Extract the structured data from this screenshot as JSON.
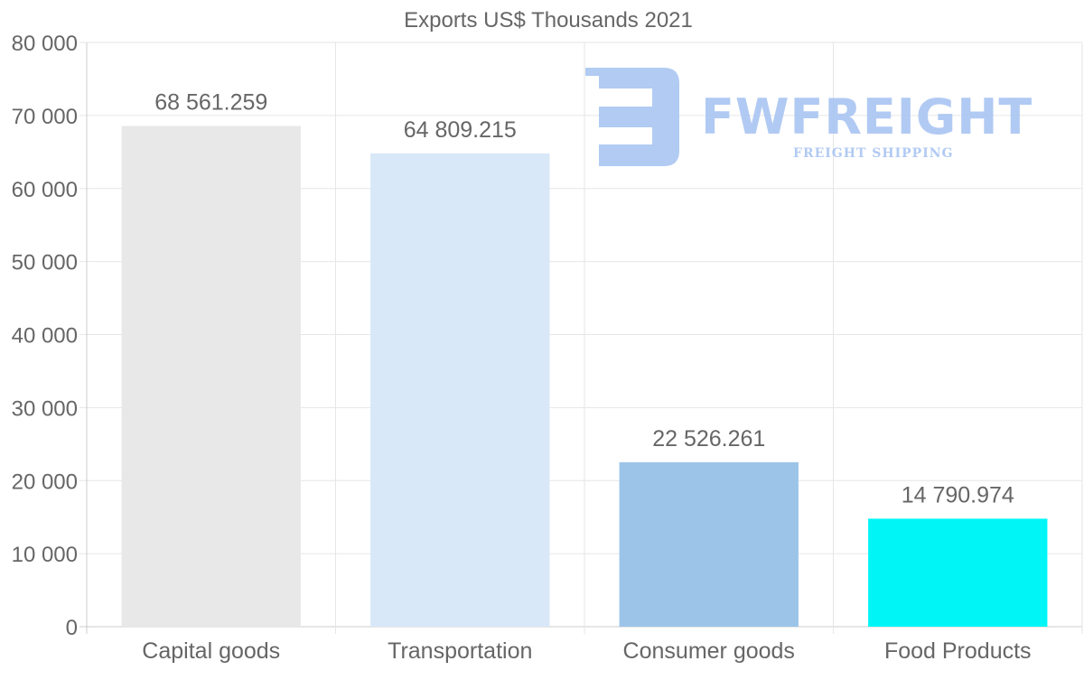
{
  "chart_data": {
    "type": "bar",
    "title": "Exports US$ Thousands 2021",
    "categories": [
      "Capital goods",
      "Transportation",
      "Consumer goods",
      "Food Products"
    ],
    "values": [
      68561.259,
      64809.215,
      22526.261,
      14790.974
    ],
    "data_labels": [
      "68 561.259",
      "64 809.215",
      "22 526.261",
      "14 790.974"
    ],
    "bar_colors": [
      "#e8e8e8",
      "#d8e8f8",
      "#9cc4e8",
      "#00f6f6"
    ],
    "ylim": [
      0,
      80000
    ],
    "y_ticks": [
      0,
      10000,
      20000,
      30000,
      40000,
      50000,
      60000,
      70000,
      80000
    ],
    "y_tick_labels": [
      "0",
      "10 000",
      "20 000",
      "30 000",
      "40 000",
      "50 000",
      "60 000",
      "70 000",
      "80 000"
    ],
    "xlabel": "",
    "ylabel": "",
    "grid": true,
    "legend": "none"
  },
  "watermark": {
    "brand": "FWFREIGHT",
    "tagline": "FREIGHT SHIPPING",
    "color": "#a9c5f2"
  }
}
